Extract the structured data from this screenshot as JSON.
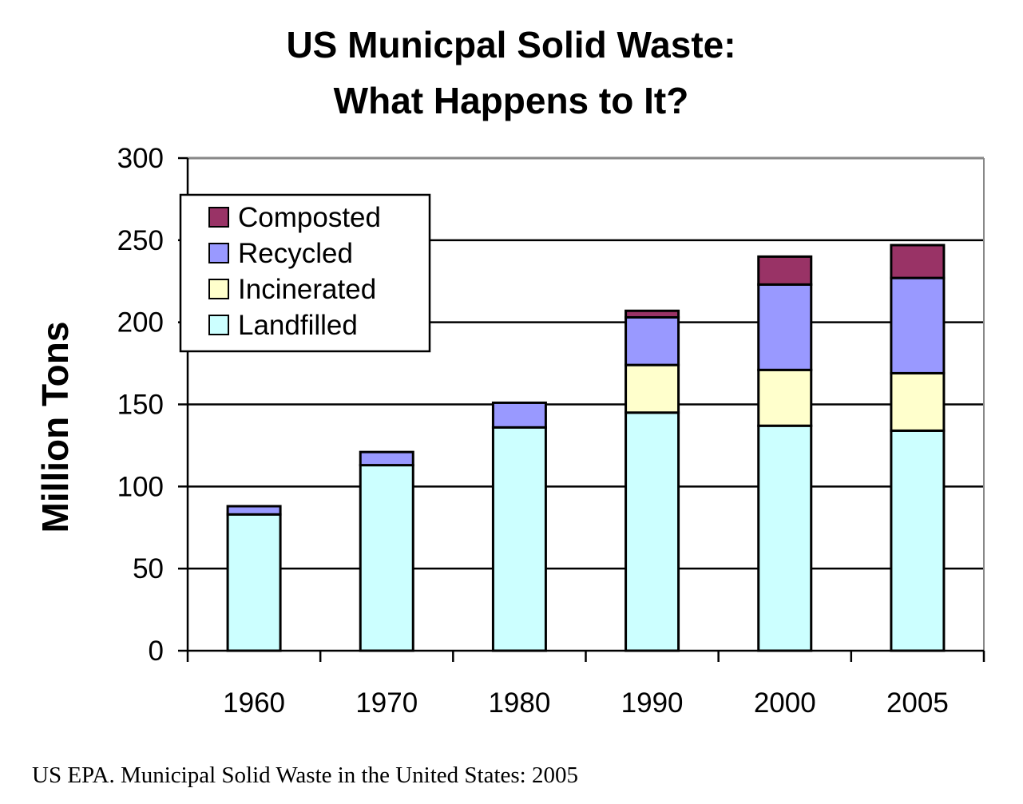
{
  "chart_data": {
    "type": "bar",
    "stacked": true,
    "title_lines": [
      "US Municpal Solid Waste:",
      "What Happens to It?"
    ],
    "xlabel": "",
    "ylabel": "Million Tons",
    "ylim": [
      0,
      300
    ],
    "yticks": [
      0,
      50,
      100,
      150,
      200,
      250,
      300
    ],
    "grid": true,
    "legend_position": "top-left",
    "categories": [
      "1960",
      "1970",
      "1980",
      "1990",
      "2000",
      "2005"
    ],
    "series": [
      {
        "name": "Landfilled",
        "color": "#ccffff",
        "values": [
          83,
          113,
          136,
          145,
          137,
          134
        ]
      },
      {
        "name": "Incinerated",
        "color": "#ffffcc",
        "values": [
          0,
          0,
          0,
          29,
          34,
          35
        ]
      },
      {
        "name": "Recycled",
        "color": "#9999ff",
        "values": [
          5,
          8,
          15,
          29,
          52,
          58
        ]
      },
      {
        "name": "Composted",
        "color": "#993366",
        "values": [
          0,
          0,
          0,
          4,
          17,
          20
        ]
      }
    ],
    "source": "US EPA. Municipal Solid Waste in the United States: 2005"
  }
}
